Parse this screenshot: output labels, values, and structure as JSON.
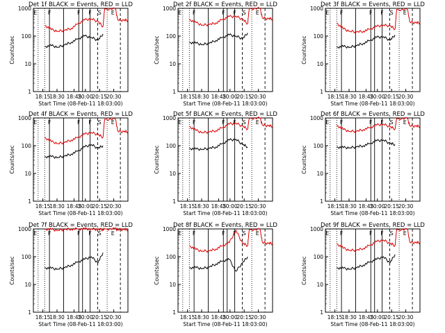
{
  "figure": {
    "description_labels": {
      "ylabel": "Counts/sec",
      "xlabel": "Start Time (08-Feb-11 18:03:00)"
    }
  },
  "chart_data": [
    {
      "type": "line",
      "title": "Det 1f BLACK = Events, RED = LLD",
      "xlabel": "Start Time (08-Feb-11 18:03:00)",
      "ylabel": "Counts/sec",
      "x_ticks": [
        "18:15",
        "18:30",
        "18:45",
        "20:00",
        "20:15",
        "20:30"
      ],
      "y_ticks": [
        "1",
        "10",
        "100",
        "1000"
      ],
      "yscale": "log",
      "ylim": [
        1,
        1000
      ],
      "series": [
        {
          "name": "BLACK",
          "color": "#000000",
          "x": [
            0,
            0.08,
            0.16,
            0.24,
            0.32,
            0.4,
            0.48,
            0.56,
            0.64,
            0.7
          ],
          "y": [
            42,
            45,
            40,
            48,
            60,
            80,
            100,
            90,
            70,
            120
          ]
        },
        {
          "name": "RED",
          "color": "#dd0000",
          "x": [
            0,
            0.08,
            0.16,
            0.24,
            0.32,
            0.4,
            0.48,
            0.56,
            0.64,
            0.7,
            0.72,
            0.85,
            0.88,
            0.95,
            1.0
          ],
          "y": [
            250,
            170,
            150,
            160,
            190,
            280,
            380,
            420,
            330,
            220,
            950,
            950,
            380,
            370,
            370
          ]
        }
      ],
      "markers": [
        "E",
        "F",
        "F",
        "F",
        "S",
        "E"
      ]
    },
    {
      "type": "line",
      "title": "Det 2f BLACK = Events, RED = LLD",
      "xlabel": "Start Time (08-Feb-11 18:03:00)",
      "ylabel": "Counts/sec",
      "x_ticks": [
        "18:15",
        "18:30",
        "18:45",
        "20:00",
        "20:15",
        "20:30"
      ],
      "y_ticks": [
        "1",
        "10",
        "100",
        "1000"
      ],
      "yscale": "log",
      "ylim": [
        1,
        1000
      ],
      "series": [
        {
          "name": "BLACK",
          "color": "#000000",
          "x": [
            0,
            0.08,
            0.16,
            0.24,
            0.32,
            0.4,
            0.48,
            0.56,
            0.64,
            0.7
          ],
          "y": [
            60,
            55,
            50,
            55,
            70,
            90,
            110,
            100,
            80,
            130
          ]
        },
        {
          "name": "RED",
          "color": "#dd0000",
          "x": [
            0,
            0.08,
            0.16,
            0.24,
            0.32,
            0.4,
            0.48,
            0.56,
            0.64,
            0.7,
            0.72,
            0.85,
            0.88,
            0.95,
            1.0
          ],
          "y": [
            400,
            300,
            250,
            260,
            300,
            400,
            500,
            520,
            400,
            280,
            980,
            980,
            450,
            420,
            420
          ]
        }
      ],
      "markers": [
        "E",
        "F",
        "F",
        "F",
        "S",
        "E"
      ]
    },
    {
      "type": "line",
      "title": "Det 3f BLACK = Events, RED = LLD",
      "xlabel": "Start Time (08-Feb-11 18:03:00)",
      "ylabel": "Counts/sec",
      "x_ticks": [
        "18:15",
        "18:30",
        "18:45",
        "20:00",
        "20:15",
        "20:30"
      ],
      "y_ticks": [
        "1",
        "10",
        "100",
        "1000"
      ],
      "yscale": "log",
      "ylim": [
        1,
        1000
      ],
      "series": [
        {
          "name": "BLACK",
          "color": "#000000",
          "x": [
            0,
            0.08,
            0.16,
            0.24,
            0.32,
            0.4,
            0.48,
            0.56,
            0.64,
            0.7
          ],
          "y": [
            40,
            42,
            40,
            45,
            55,
            70,
            90,
            95,
            70,
            110
          ]
        },
        {
          "name": "RED",
          "color": "#dd0000",
          "x": [
            0,
            0.08,
            0.16,
            0.24,
            0.32,
            0.4,
            0.48,
            0.56,
            0.64,
            0.7,
            0.72,
            0.85,
            0.88,
            0.95,
            1.0
          ],
          "y": [
            300,
            180,
            150,
            140,
            150,
            180,
            220,
            250,
            230,
            180,
            900,
            900,
            320,
            300,
            300
          ]
        }
      ],
      "markers": [
        "E",
        "F",
        "F",
        "F",
        "S",
        "E"
      ]
    },
    {
      "type": "line",
      "title": "Det 4f BLACK = Events, RED = LLD",
      "xlabel": "Start Time (08-Feb-11 18:03:00)",
      "ylabel": "Counts/sec",
      "x_ticks": [
        "18:15",
        "18:30",
        "18:45",
        "20:00",
        "20:15",
        "20:30"
      ],
      "y_ticks": [
        "1",
        "10",
        "100",
        "1000"
      ],
      "yscale": "log",
      "ylim": [
        1,
        1000
      ],
      "series": [
        {
          "name": "BLACK",
          "color": "#000000",
          "x": [
            0,
            0.08,
            0.16,
            0.24,
            0.32,
            0.4,
            0.48,
            0.56,
            0.64,
            0.7
          ],
          "y": [
            40,
            40,
            38,
            42,
            50,
            65,
            90,
            110,
            80,
            100
          ]
        },
        {
          "name": "RED",
          "color": "#dd0000",
          "x": [
            0,
            0.08,
            0.16,
            0.24,
            0.32,
            0.4,
            0.48,
            0.56,
            0.64,
            0.7,
            0.72,
            0.85,
            0.88,
            0.95,
            1.0
          ],
          "y": [
            200,
            140,
            120,
            130,
            160,
            200,
            260,
            300,
            250,
            200,
            900,
            900,
            330,
            320,
            320
          ]
        }
      ],
      "markers": [
        "E",
        "F",
        "F",
        "F",
        "S",
        "E"
      ]
    },
    {
      "type": "line",
      "title": "Det 5f BLACK = Events, RED = LLD",
      "xlabel": "Start Time (08-Feb-11 18:03:00)",
      "ylabel": "Counts/sec",
      "x_ticks": [
        "18:15",
        "18:30",
        "18:45",
        "20:00",
        "20:15",
        "20:30"
      ],
      "y_ticks": [
        "1",
        "10",
        "100",
        "1000"
      ],
      "yscale": "log",
      "ylim": [
        1,
        1000
      ],
      "series": [
        {
          "name": "BLACK",
          "color": "#000000",
          "x": [
            0,
            0.08,
            0.16,
            0.24,
            0.32,
            0.4,
            0.48,
            0.56,
            0.64,
            0.7
          ],
          "y": [
            80,
            75,
            75,
            80,
            90,
            120,
            160,
            170,
            110,
            90
          ]
        },
        {
          "name": "RED",
          "color": "#dd0000",
          "x": [
            0,
            0.08,
            0.16,
            0.24,
            0.32,
            0.4,
            0.48,
            0.56,
            0.64,
            0.7,
            0.72,
            0.85,
            0.88,
            0.95,
            1.0
          ],
          "y": [
            500,
            350,
            300,
            310,
            350,
            450,
            600,
            650,
            500,
            400,
            980,
            980,
            550,
            520,
            500
          ]
        }
      ],
      "markers": [
        "E",
        "F",
        "F",
        "F",
        "S",
        "E"
      ]
    },
    {
      "type": "line",
      "title": "Det 6f BLACK = Events, RED = LLD",
      "xlabel": "Start Time (08-Feb-11 18:03:00)",
      "ylabel": "Counts/sec",
      "x_ticks": [
        "18:15",
        "18:30",
        "18:45",
        "20:00",
        "20:15",
        "20:30"
      ],
      "y_ticks": [
        "1",
        "10",
        "100",
        "1000"
      ],
      "yscale": "log",
      "ylim": [
        1,
        1000
      ],
      "series": [
        {
          "name": "BLACK",
          "color": "#000000",
          "x": [
            0,
            0.08,
            0.16,
            0.24,
            0.32,
            0.4,
            0.48,
            0.56,
            0.64,
            0.7
          ],
          "y": [
            90,
            85,
            85,
            90,
            100,
            120,
            150,
            160,
            120,
            110
          ]
        },
        {
          "name": "RED",
          "color": "#dd0000",
          "x": [
            0,
            0.08,
            0.16,
            0.24,
            0.32,
            0.4,
            0.48,
            0.56,
            0.64,
            0.7,
            0.72,
            0.85,
            0.88,
            0.95,
            1.0
          ],
          "y": [
            550,
            380,
            330,
            330,
            380,
            450,
            550,
            600,
            480,
            400,
            950,
            950,
            520,
            500,
            500
          ]
        }
      ],
      "markers": [
        "E",
        "F",
        "F",
        "F",
        "S",
        "E"
      ]
    },
    {
      "type": "line",
      "title": "Det 7f BLACK = Events, RED = LLD",
      "xlabel": "Start Time (08-Feb-11 18:03:00)",
      "ylabel": "Counts/sec",
      "x_ticks": [
        "18:15",
        "18:30",
        "18:45",
        "20:00",
        "20:15",
        "20:30"
      ],
      "y_ticks": [
        "1",
        "10",
        "100",
        "1000"
      ],
      "yscale": "log",
      "ylim": [
        1,
        1000
      ],
      "series": [
        {
          "name": "BLACK",
          "color": "#000000",
          "x": [
            0,
            0.08,
            0.16,
            0.24,
            0.32,
            0.4,
            0.48,
            0.56,
            0.64,
            0.7
          ],
          "y": [
            40,
            38,
            36,
            40,
            50,
            65,
            80,
            100,
            60,
            140
          ]
        },
        {
          "name": "RED",
          "color": "#dd0000",
          "x": [
            0,
            0.08,
            0.16,
            0.24,
            0.32,
            0.4,
            0.48,
            0.56,
            0.64,
            0.7,
            0.72,
            0.85,
            0.88,
            0.95,
            1.0
          ],
          "y": [
            1000,
            950,
            900,
            950,
            1000,
            1000,
            1000,
            1000,
            950,
            950,
            1000,
            1000,
            950,
            950,
            950
          ]
        }
      ],
      "markers": [
        "E",
        "F",
        "F",
        "F",
        "S",
        "E"
      ]
    },
    {
      "type": "line",
      "title": "Det 8f BLACK = Events, RED = LLD",
      "xlabel": "Start Time (08-Feb-11 18:03:00)",
      "ylabel": "Counts/sec",
      "x_ticks": [
        "18:15",
        "18:30",
        "18:45",
        "20:00",
        "20:15",
        "20:30"
      ],
      "y_ticks": [
        "1",
        "10",
        "100",
        "1000"
      ],
      "yscale": "log",
      "ylim": [
        1,
        1000
      ],
      "series": [
        {
          "name": "BLACK",
          "color": "#000000",
          "x": [
            0,
            0.08,
            0.16,
            0.24,
            0.32,
            0.4,
            0.48,
            0.56,
            0.64,
            0.7
          ],
          "y": [
            40,
            40,
            38,
            42,
            55,
            70,
            80,
            30,
            60,
            100
          ]
        },
        {
          "name": "RED",
          "color": "#dd0000",
          "x": [
            0,
            0.08,
            0.16,
            0.24,
            0.32,
            0.4,
            0.48,
            0.56,
            0.64,
            0.7,
            0.72,
            0.85,
            0.88,
            0.95,
            1.0
          ],
          "y": [
            250,
            180,
            160,
            160,
            190,
            250,
            320,
            900,
            300,
            250,
            950,
            950,
            320,
            300,
            300
          ]
        }
      ],
      "markers": [
        "E",
        "F",
        "F",
        "F",
        "S",
        "E"
      ]
    },
    {
      "type": "line",
      "title": "Det 9f BLACK = Events, RED = LLD",
      "xlabel": "Start Time (08-Feb-11 18:03:00)",
      "ylabel": "Counts/sec",
      "x_ticks": [
        "18:15",
        "18:30",
        "18:45",
        "20:00",
        "20:15",
        "20:30"
      ],
      "y_ticks": [
        "1",
        "10",
        "100",
        "1000"
      ],
      "yscale": "log",
      "ylim": [
        1,
        1000
      ],
      "series": [
        {
          "name": "BLACK",
          "color": "#000000",
          "x": [
            0,
            0.08,
            0.16,
            0.24,
            0.32,
            0.4,
            0.48,
            0.56,
            0.64,
            0.7
          ],
          "y": [
            40,
            38,
            36,
            40,
            50,
            65,
            80,
            100,
            60,
            120
          ]
        },
        {
          "name": "RED",
          "color": "#dd0000",
          "x": [
            0,
            0.08,
            0.16,
            0.24,
            0.32,
            0.4,
            0.48,
            0.56,
            0.64,
            0.7,
            0.72,
            0.85,
            0.88,
            0.95,
            1.0
          ],
          "y": [
            300,
            200,
            170,
            170,
            200,
            260,
            350,
            400,
            300,
            250,
            950,
            950,
            330,
            320,
            320
          ]
        }
      ],
      "markers": [
        "E",
        "F",
        "F",
        "F",
        "S",
        "E"
      ]
    }
  ]
}
